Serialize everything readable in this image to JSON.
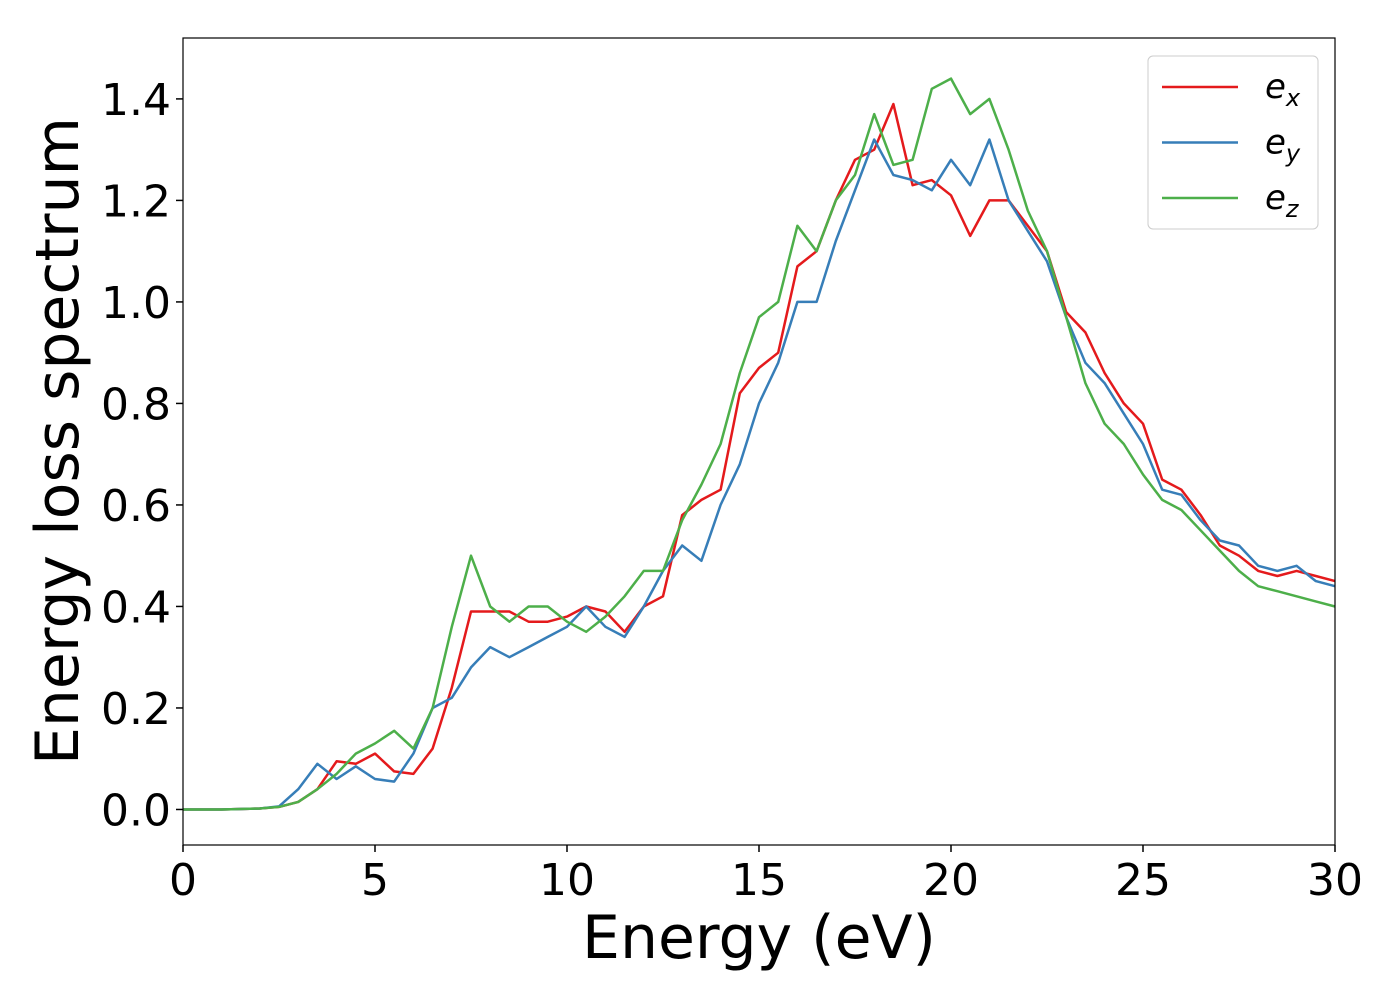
{
  "chart_data": {
    "type": "line",
    "xlabel": "Energy (eV)",
    "ylabel": "Energy loss spectrum",
    "x": [
      0,
      0.5,
      1,
      1.5,
      2,
      2.5,
      3,
      3.5,
      4,
      4.5,
      5,
      5.5,
      6,
      6.5,
      7,
      7.5,
      8,
      8.5,
      9,
      9.5,
      10,
      10.5,
      11,
      11.5,
      12,
      12.5,
      13,
      13.5,
      14,
      14.5,
      15,
      15.5,
      16,
      16.5,
      17,
      17.5,
      18,
      18.5,
      19,
      19.5,
      20,
      20.5,
      21,
      21.5,
      22,
      22.5,
      23,
      23.5,
      24,
      24.5,
      25,
      25.5,
      26,
      26.5,
      27,
      27.5,
      28,
      28.5,
      29,
      29.5,
      30
    ],
    "series": [
      {
        "name": "e_x",
        "color": "#e41a1c",
        "values": [
          0,
          0,
          0,
          0.001,
          0.002,
          0.005,
          0.015,
          0.04,
          0.095,
          0.09,
          0.11,
          0.075,
          0.07,
          0.12,
          0.24,
          0.39,
          0.39,
          0.39,
          0.37,
          0.37,
          0.38,
          0.4,
          0.39,
          0.35,
          0.4,
          0.42,
          0.58,
          0.61,
          0.63,
          0.82,
          0.87,
          0.9,
          1.07,
          1.1,
          1.2,
          1.28,
          1.3,
          1.39,
          1.23,
          1.24,
          1.21,
          1.13,
          1.2,
          1.2,
          1.15,
          1.1,
          0.98,
          0.94,
          0.86,
          0.8,
          0.76,
          0.65,
          0.63,
          0.58,
          0.52,
          0.5,
          0.47,
          0.46,
          0.47,
          0.46,
          0.45
        ]
      },
      {
        "name": "e_y",
        "color": "#377eb8",
        "values": [
          0,
          0,
          0,
          0.001,
          0.002,
          0.006,
          0.04,
          0.09,
          0.06,
          0.085,
          0.06,
          0.055,
          0.11,
          0.2,
          0.22,
          0.28,
          0.32,
          0.3,
          0.32,
          0.34,
          0.36,
          0.4,
          0.36,
          0.34,
          0.4,
          0.47,
          0.52,
          0.49,
          0.6,
          0.68,
          0.8,
          0.88,
          1.0,
          1.0,
          1.12,
          1.22,
          1.32,
          1.25,
          1.24,
          1.22,
          1.28,
          1.23,
          1.32,
          1.2,
          1.14,
          1.08,
          0.97,
          0.88,
          0.84,
          0.78,
          0.72,
          0.63,
          0.62,
          0.57,
          0.53,
          0.52,
          0.48,
          0.47,
          0.48,
          0.45,
          0.44
        ]
      },
      {
        "name": "e_z",
        "color": "#4daf4a",
        "values": [
          0,
          0,
          0,
          0.001,
          0.002,
          0.005,
          0.015,
          0.04,
          0.07,
          0.11,
          0.13,
          0.155,
          0.12,
          0.2,
          0.36,
          0.5,
          0.4,
          0.37,
          0.4,
          0.4,
          0.37,
          0.35,
          0.38,
          0.42,
          0.47,
          0.47,
          0.57,
          0.64,
          0.72,
          0.86,
          0.97,
          1.0,
          1.15,
          1.1,
          1.2,
          1.25,
          1.37,
          1.27,
          1.28,
          1.42,
          1.44,
          1.37,
          1.4,
          1.3,
          1.18,
          1.1,
          0.97,
          0.84,
          0.76,
          0.72,
          0.66,
          0.61,
          0.59,
          0.55,
          0.51,
          0.47,
          0.44,
          0.43,
          0.42,
          0.41,
          0.4
        ]
      }
    ],
    "xlim": [
      0,
      30
    ],
    "xticks": [
      0,
      5,
      10,
      15,
      20,
      25,
      30
    ],
    "ylim": [
      -0.07,
      1.52
    ],
    "yticks": [
      {
        "value": 0,
        "label": "0.0"
      },
      {
        "value": 0.2,
        "label": "0.2"
      },
      {
        "value": 0.4,
        "label": "0.4"
      },
      {
        "value": 0.6,
        "label": "0.6"
      },
      {
        "value": 0.8,
        "label": "0.8"
      },
      {
        "value": 1,
        "label": "1.0"
      },
      {
        "value": 1.2,
        "label": "1.2"
      },
      {
        "value": 1.4,
        "label": "1.4"
      }
    ],
    "legend": "upper right"
  }
}
